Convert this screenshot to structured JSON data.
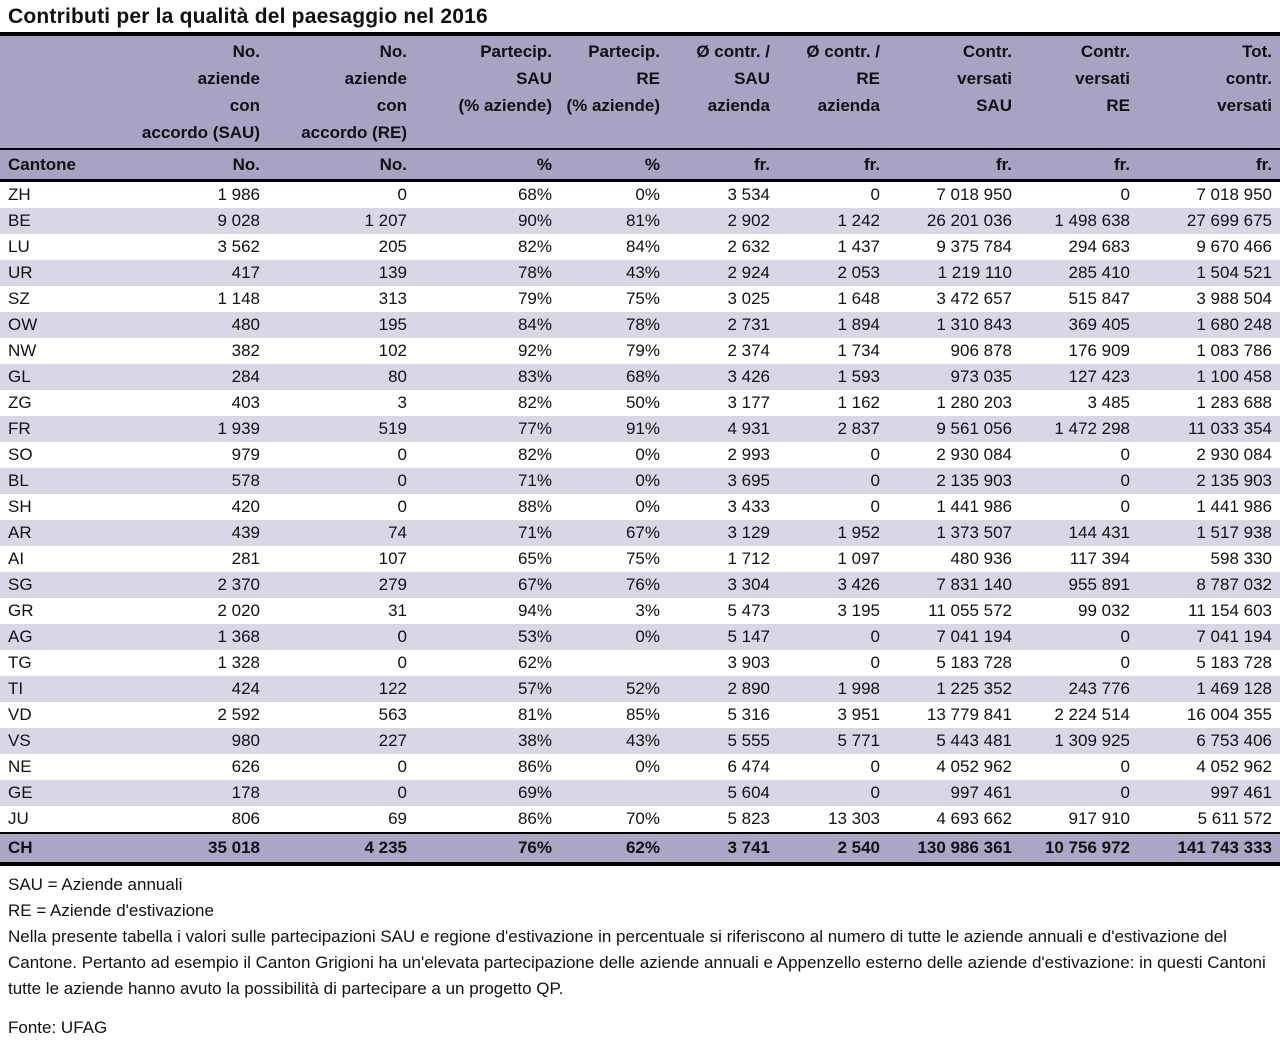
{
  "title": "Contributi per la qualità del paesaggio nel 2016",
  "colors": {
    "header-purple": "#a8a2c3",
    "stripe": "#d9d7e5",
    "total-purple": "#aba5c6",
    "line": "#000000",
    "text": "#111111"
  },
  "chart_data": {
    "type": "table",
    "title": "Contributi per la qualità del paesaggio nel 2016",
    "columns_top": [
      "",
      "No.\naziende\ncon\naccordo (SAU)",
      "No.\naziende\ncon\naccordo (RE)",
      "Partecip.\nSAU\n(% aziende)",
      "Partecip.\nRE\n(% aziende)",
      "Ø contr. /\nSAU\nazienda",
      "Ø contr. /\nRE\nazienda",
      "Contr.\nversati\nSAU",
      "Contr.\nversati\nRE",
      "Tot.\ncontr.\nversati"
    ],
    "columns_units": [
      "Cantone",
      "No.",
      "No.",
      "%",
      "%",
      "fr.",
      "fr.",
      "fr.",
      "fr.",
      "fr."
    ],
    "rows": [
      [
        "ZH",
        "1 986",
        "0",
        "68%",
        "0%",
        "3 534",
        "0",
        "7 018 950",
        "0",
        "7 018 950"
      ],
      [
        "BE",
        "9 028",
        "1 207",
        "90%",
        "81%",
        "2 902",
        "1 242",
        "26 201 036",
        "1 498 638",
        "27 699 675"
      ],
      [
        "LU",
        "3 562",
        "205",
        "82%",
        "84%",
        "2 632",
        "1 437",
        "9 375 784",
        "294 683",
        "9 670 466"
      ],
      [
        "UR",
        "417",
        "139",
        "78%",
        "43%",
        "2 924",
        "2 053",
        "1 219 110",
        "285 410",
        "1 504 521"
      ],
      [
        "SZ",
        "1 148",
        "313",
        "79%",
        "75%",
        "3 025",
        "1 648",
        "3 472 657",
        "515 847",
        "3 988 504"
      ],
      [
        "OW",
        "480",
        "195",
        "84%",
        "78%",
        "2 731",
        "1 894",
        "1 310 843",
        "369 405",
        "1 680 248"
      ],
      [
        "NW",
        "382",
        "102",
        "92%",
        "79%",
        "2 374",
        "1 734",
        "906 878",
        "176 909",
        "1 083 786"
      ],
      [
        "GL",
        "284",
        "80",
        "83%",
        "68%",
        "3 426",
        "1 593",
        "973 035",
        "127 423",
        "1 100 458"
      ],
      [
        "ZG",
        "403",
        "3",
        "82%",
        "50%",
        "3 177",
        "1 162",
        "1 280 203",
        "3 485",
        "1 283 688"
      ],
      [
        "FR",
        "1 939",
        "519",
        "77%",
        "91%",
        "4 931",
        "2 837",
        "9 561 056",
        "1 472 298",
        "11 033 354"
      ],
      [
        "SO",
        "979",
        "0",
        "82%",
        "0%",
        "2 993",
        "0",
        "2 930 084",
        "0",
        "2 930 084"
      ],
      [
        "BL",
        "578",
        "0",
        "71%",
        "0%",
        "3 695",
        "0",
        "2 135 903",
        "0",
        "2 135 903"
      ],
      [
        "SH",
        "420",
        "0",
        "88%",
        "0%",
        "3 433",
        "0",
        "1 441 986",
        "0",
        "1 441 986"
      ],
      [
        "AR",
        "439",
        "74",
        "71%",
        "67%",
        "3 129",
        "1 952",
        "1 373 507",
        "144 431",
        "1 517 938"
      ],
      [
        "AI",
        "281",
        "107",
        "65%",
        "75%",
        "1 712",
        "1 097",
        "480 936",
        "117 394",
        "598 330"
      ],
      [
        "SG",
        "2 370",
        "279",
        "67%",
        "76%",
        "3 304",
        "3 426",
        "7 831 140",
        "955 891",
        "8 787 032"
      ],
      [
        "GR",
        "2 020",
        "31",
        "94%",
        "3%",
        "5 473",
        "3 195",
        "11 055 572",
        "99 032",
        "11 154 603"
      ],
      [
        "AG",
        "1 368",
        "0",
        "53%",
        "0%",
        "5 147",
        "0",
        "7 041 194",
        "0",
        "7 041 194"
      ],
      [
        "TG",
        "1 328",
        "0",
        "62%",
        "",
        "3 903",
        "0",
        "5 183 728",
        "0",
        "5 183 728"
      ],
      [
        "TI",
        "424",
        "122",
        "57%",
        "52%",
        "2 890",
        "1 998",
        "1 225 352",
        "243 776",
        "1 469 128"
      ],
      [
        "VD",
        "2 592",
        "563",
        "81%",
        "85%",
        "5 316",
        "3 951",
        "13 779 841",
        "2 224 514",
        "16 004 355"
      ],
      [
        "VS",
        "980",
        "227",
        "38%",
        "43%",
        "5 555",
        "5 771",
        "5 443 481",
        "1 309 925",
        "6 753 406"
      ],
      [
        "NE",
        "626",
        "0",
        "86%",
        "0%",
        "6 474",
        "0",
        "4 052 962",
        "0",
        "4 052 962"
      ],
      [
        "GE",
        "178",
        "0",
        "69%",
        "",
        "5 604",
        "0",
        "997 461",
        "0",
        "997 461"
      ],
      [
        "JU",
        "806",
        "69",
        "86%",
        "70%",
        "5 823",
        "13 303",
        "4 693 662",
        "917 910",
        "5 611 572"
      ]
    ],
    "total_rows": [
      [
        "CH",
        "35 018",
        "4 235",
        "76%",
        "62%",
        "3 741",
        "2 540",
        "130 986 361",
        "10 756 972",
        "141 743 333"
      ]
    ]
  },
  "footnotes": {
    "fn1": "SAU = Aziende annuali",
    "fn2": "RE = Aziende d'estivazione",
    "note": "Nella presente tabella i valori sulle partecipazioni SAU e regione d'estivazione in percentuale si riferiscono al numero di tutte le aziende annuali e d'estivazione del Cantone. Pertanto ad esempio il Canton Grigioni ha un'elevata partecipazione delle aziende annuali e Appenzello esterno delle aziende d'estivazione: in questi Cantoni tutte le aziende hanno avuto la possibilità di partecipare a un progetto QP."
  },
  "source": "Fonte: UFAG"
}
